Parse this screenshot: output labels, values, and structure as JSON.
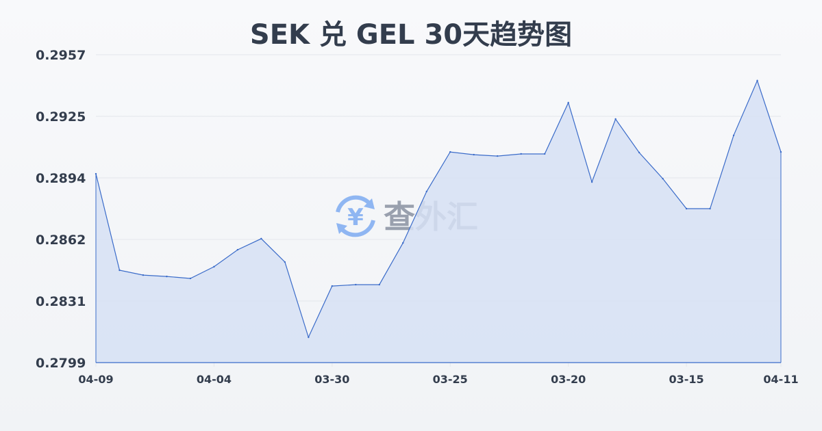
{
  "chart_data": {
    "type": "area",
    "title": "SEK 兑 GEL 30天趋势图",
    "xlabel": "",
    "ylabel": "",
    "ylim": [
      0.2799,
      0.2957
    ],
    "y_ticks": [
      "0.2957",
      "0.2925",
      "0.2894",
      "0.2862",
      "0.2831",
      "0.2799"
    ],
    "x_ticks": [
      {
        "label": "04-09",
        "index": 0
      },
      {
        "label": "04-04",
        "index": 5
      },
      {
        "label": "03-30",
        "index": 10
      },
      {
        "label": "03-25",
        "index": 15
      },
      {
        "label": "03-20",
        "index": 20
      },
      {
        "label": "03-15",
        "index": 25
      },
      {
        "label": "04-11",
        "index": 29
      }
    ],
    "values": [
      0.28959,
      0.28464,
      0.28439,
      0.28432,
      0.28422,
      0.28482,
      0.28569,
      0.28626,
      0.28506,
      0.2812,
      0.28383,
      0.2839,
      0.2839,
      0.28604,
      0.28868,
      0.29071,
      0.29057,
      0.2905,
      0.29061,
      0.29061,
      0.29324,
      0.28917,
      0.2924,
      0.29068,
      0.28934,
      0.2878,
      0.2878,
      0.29156,
      0.29437,
      0.29071
    ],
    "grid": true,
    "line_color": "#3a6bc9",
    "fill_color": "#d6e0f5"
  },
  "watermark": {
    "text": "查外汇",
    "icon": "yen-exchange-icon",
    "color": "#4d8ff0"
  }
}
